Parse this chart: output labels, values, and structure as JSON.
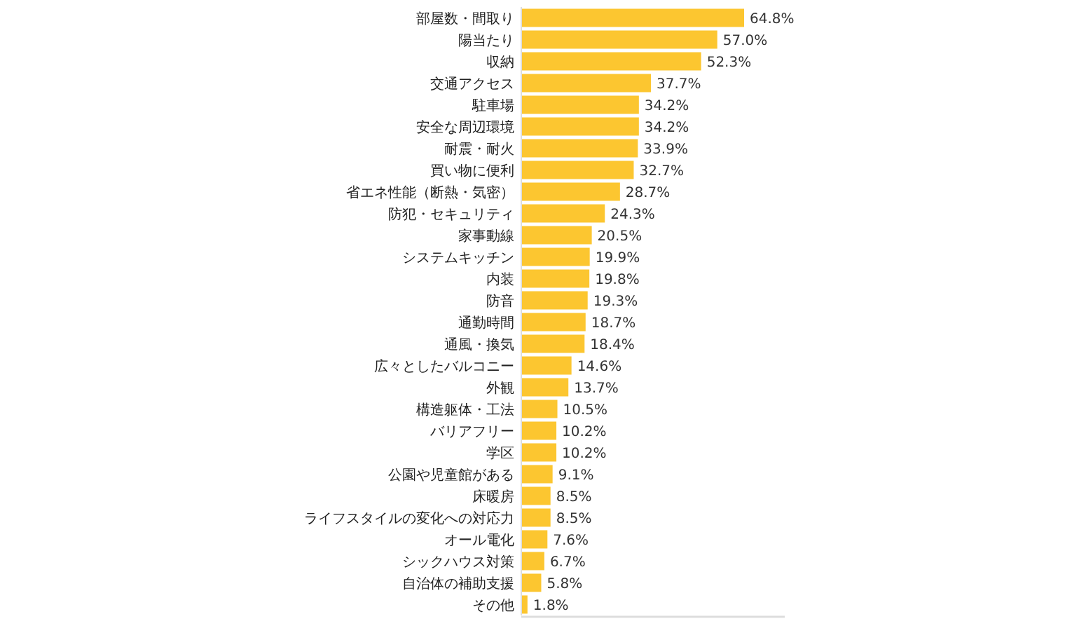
{
  "chart_data": {
    "type": "bar",
    "orientation": "horizontal",
    "color": "#fcc630",
    "categories": [
      "部屋数・間取り",
      "陽当たり",
      "収納",
      "交通アクセス",
      "駐車場",
      "安全な周辺環境",
      "耐震・耐火",
      "買い物に便利",
      "省エネ性能（断熱・気密）",
      "防犯・セキュリティ",
      "家事動線",
      "システムキッチン",
      "内装",
      "防音",
      "通勤時間",
      "通風・換気",
      "広々としたバルコニー",
      "外観",
      "構造躯体・工法",
      "バリアフリー",
      "学区",
      "公園や児童館がある",
      "床暖房",
      "ライフスタイルの変化への対応力",
      "オール電化",
      "シックハウス対策",
      "自治体の補助支援",
      "その他"
    ],
    "values": [
      64.8,
      57.0,
      52.3,
      37.7,
      34.2,
      34.2,
      33.9,
      32.7,
      28.7,
      24.3,
      20.5,
      19.9,
      19.8,
      19.3,
      18.7,
      18.4,
      14.6,
      13.7,
      10.5,
      10.2,
      10.2,
      9.1,
      8.5,
      8.5,
      7.6,
      6.7,
      5.8,
      1.8
    ],
    "value_labels": [
      "64.8%",
      "57.0%",
      "52.3%",
      "37.7%",
      "34.2%",
      "34.2%",
      "33.9%",
      "32.7%",
      "28.7%",
      "24.3%",
      "20.5%",
      "19.9%",
      "19.8%",
      "19.3%",
      "18.7%",
      "18.4%",
      "14.6%",
      "13.7%",
      "10.5%",
      "10.2%",
      "10.2%",
      "9.1%",
      "8.5%",
      "8.5%",
      "7.6%",
      "6.7%",
      "5.8%",
      "1.8%"
    ]
  }
}
